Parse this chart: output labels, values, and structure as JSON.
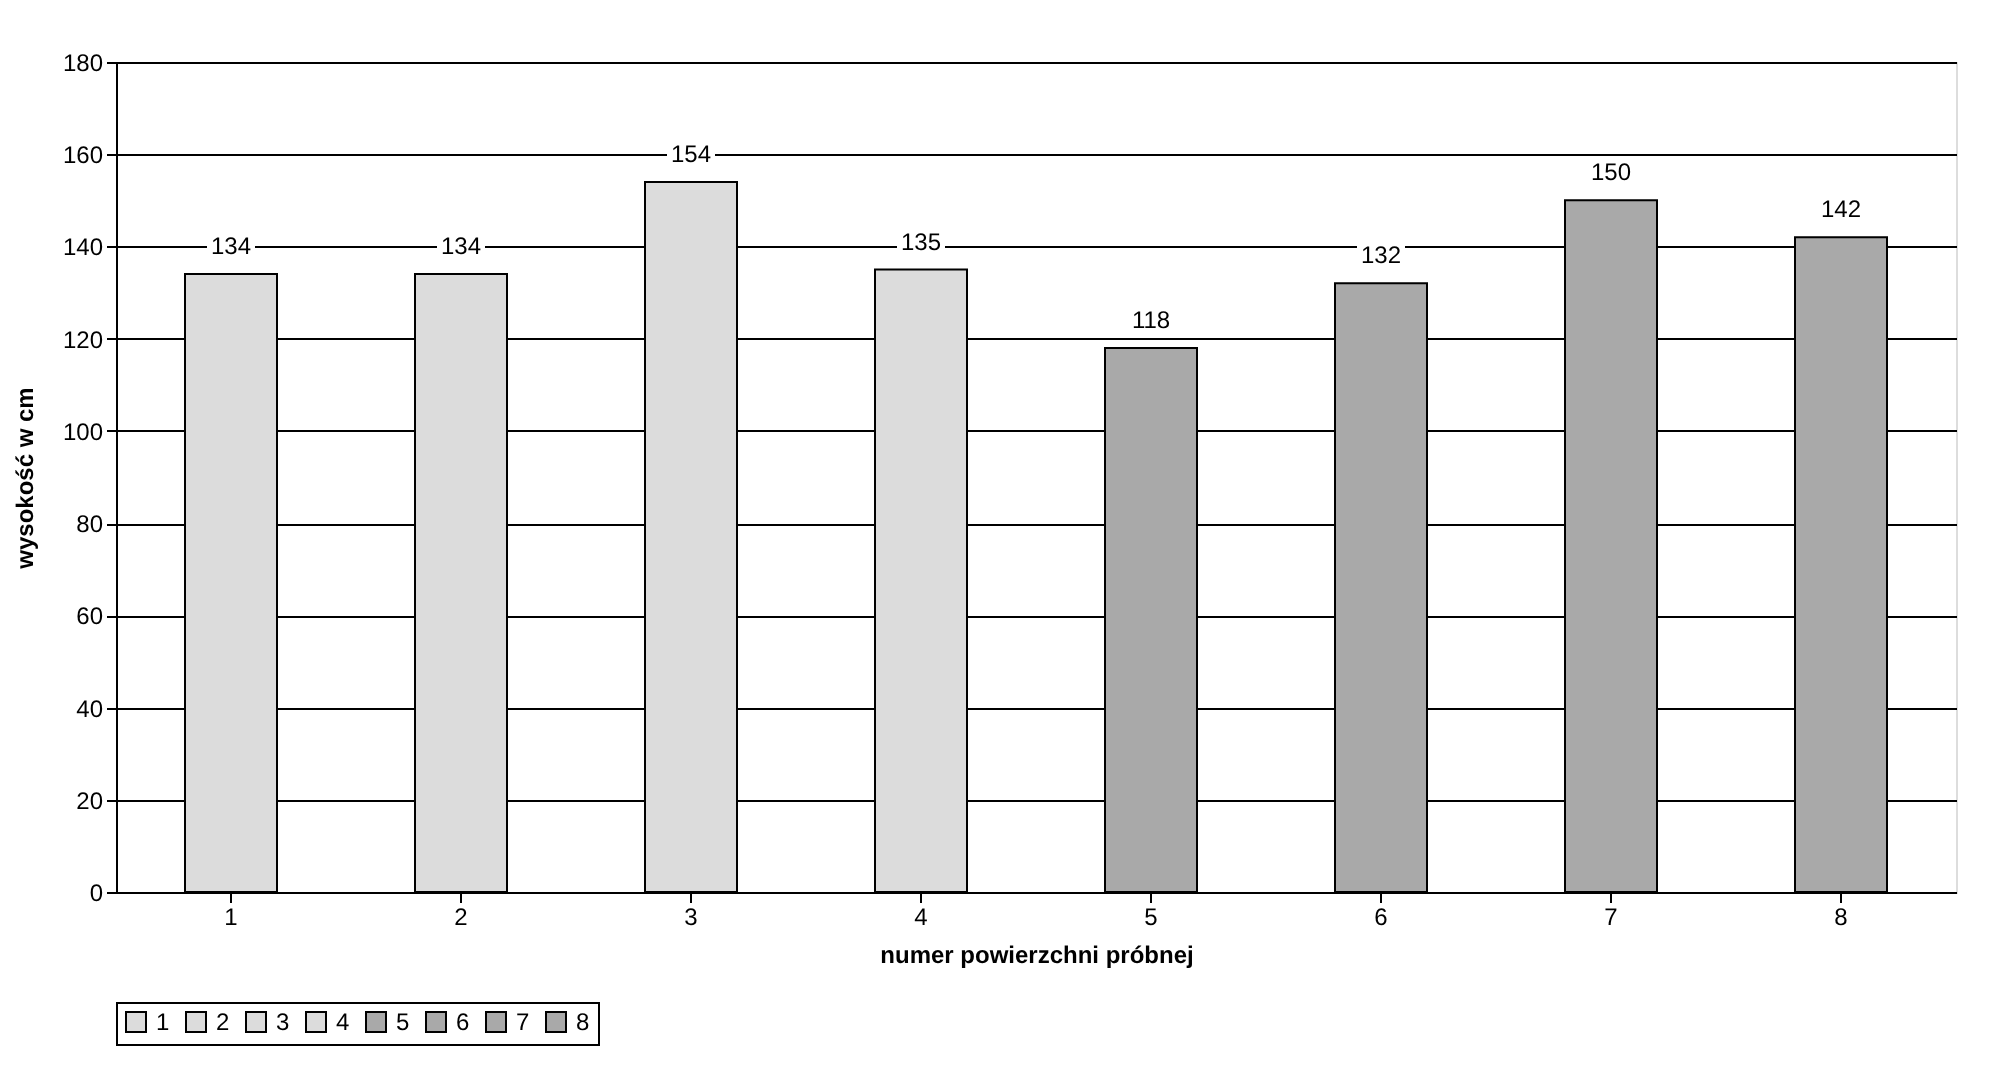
{
  "chart_data": {
    "type": "bar",
    "xlabel": "numer powierzchni próbnej",
    "ylabel": "wysokość w cm",
    "categories": [
      "1",
      "2",
      "3",
      "4",
      "5",
      "6",
      "7",
      "8"
    ],
    "series": [
      {
        "name": "1",
        "color": "#dcdcdc",
        "values": [
          134,
          null,
          null,
          null,
          null,
          null,
          null,
          null
        ]
      },
      {
        "name": "2",
        "color": "#dcdcdc",
        "values": [
          null,
          134,
          null,
          null,
          null,
          null,
          null,
          null
        ]
      },
      {
        "name": "3",
        "color": "#dcdcdc",
        "values": [
          null,
          null,
          154,
          null,
          null,
          null,
          null,
          null
        ]
      },
      {
        "name": "4",
        "color": "#dcdcdc",
        "values": [
          null,
          null,
          null,
          135,
          null,
          null,
          null,
          null
        ]
      },
      {
        "name": "5",
        "color": "#a9a9a9",
        "values": [
          null,
          null,
          null,
          null,
          118,
          null,
          null,
          null
        ]
      },
      {
        "name": "6",
        "color": "#a9a9a9",
        "values": [
          null,
          null,
          null,
          null,
          null,
          132,
          null,
          null
        ]
      },
      {
        "name": "7",
        "color": "#a9a9a9",
        "values": [
          null,
          null,
          null,
          null,
          null,
          null,
          150,
          null
        ]
      },
      {
        "name": "8",
        "color": "#a9a9a9",
        "values": [
          null,
          null,
          null,
          null,
          null,
          null,
          null,
          142
        ]
      }
    ],
    "ylim": [
      0,
      180
    ],
    "yticks": [
      0,
      20,
      40,
      60,
      80,
      100,
      120,
      140,
      160,
      180
    ],
    "grid": "y",
    "legend": "bottom",
    "data_labels": true
  }
}
